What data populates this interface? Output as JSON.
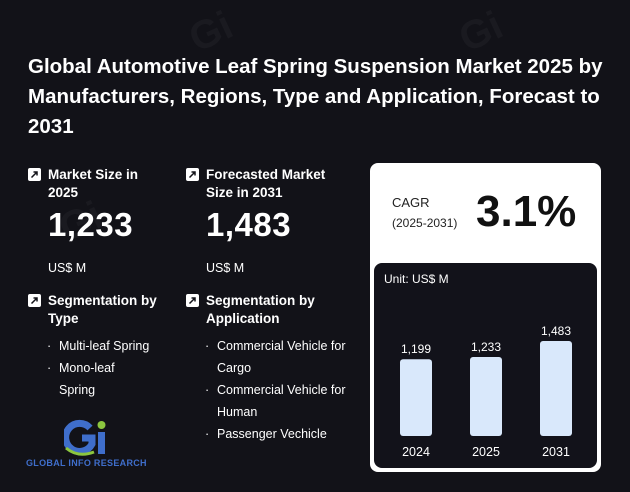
{
  "title": "Global Automotive Leaf Spring Suspension Market 2025 by Manufacturers, Regions, Type and Application, Forecast to 2031",
  "market_size": {
    "label": "Market Size in 2025",
    "value": "1,233",
    "unit": "US$ M"
  },
  "forecast_size": {
    "label": "Forecasted Market Size in 2031",
    "value": "1,483",
    "unit": "US$ M"
  },
  "segmentation_type": {
    "label": "Segmentation by Type",
    "items": [
      "Multi-leaf Spring",
      "Mono-leaf Spring"
    ]
  },
  "segmentation_application": {
    "label": "Segmentation by Application",
    "items": [
      "Commercial Vehicle for Cargo",
      "Commercial Vehicle for Human",
      "Passenger Vechicle"
    ]
  },
  "cagr": {
    "label": "CAGR",
    "years": "(2025-2031)",
    "value": "3.1%"
  },
  "logo_text": "GLOBAL INFO RESEARCH",
  "colors": {
    "background": "#121218",
    "bar": "#d9e8fb",
    "card": "#ffffff",
    "logo_blue": "#3f6ecb",
    "logo_green": "#8cc63f"
  },
  "chart_data": {
    "type": "bar",
    "unit_label": "Unit: US$ M",
    "categories": [
      "2024",
      "2025",
      "2031"
    ],
    "values": [
      1199,
      1233,
      1483
    ],
    "value_labels": [
      "1,199",
      "1,233",
      "1,483"
    ],
    "ylim": [
      0,
      1483
    ]
  }
}
